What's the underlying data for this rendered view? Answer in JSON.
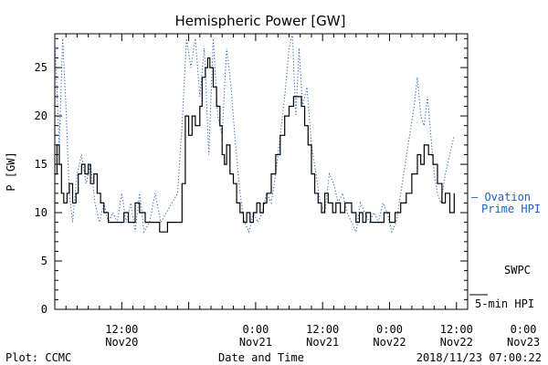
{
  "chart_data": {
    "type": "line",
    "title": "Hemispheric Power [GW]",
    "xlabel": "Date and Time",
    "ylabel": "P [GW]",
    "ylim": [
      0,
      28.5
    ],
    "yticks": [
      0,
      5,
      10,
      15,
      20,
      25
    ],
    "xlim_hours": [
      -6,
      31
    ],
    "xticks": [
      {
        "hour": 0,
        "line1": "12:00",
        "line2": "Nov20"
      },
      {
        "hour": 12,
        "line1": "0:00",
        "line2": "Nov21"
      },
      {
        "hour": 18,
        "line1": "12:00",
        "line2": "Nov21"
      },
      {
        "hour": 24,
        "line1": "0:00",
        "line2": "Nov22"
      },
      {
        "hour": 30,
        "line1": "12:00",
        "line2": "Nov22"
      },
      {
        "hour": 36,
        "line1": "0:00",
        "line2": "Nov23"
      }
    ],
    "series": [
      {
        "name": "SWPC 5-min HPI",
        "color": "#000000",
        "style": "step",
        "points": [
          [
            -6.0,
            14
          ],
          [
            -5.8,
            17
          ],
          [
            -5.6,
            15
          ],
          [
            -5.4,
            12
          ],
          [
            -5.2,
            11
          ],
          [
            -4.9,
            12
          ],
          [
            -4.7,
            13
          ],
          [
            -4.4,
            11
          ],
          [
            -4.1,
            12
          ],
          [
            -3.9,
            14
          ],
          [
            -3.6,
            15
          ],
          [
            -3.3,
            14
          ],
          [
            -3.0,
            15
          ],
          [
            -2.8,
            13
          ],
          [
            -2.5,
            14
          ],
          [
            -2.2,
            12
          ],
          [
            -1.9,
            11
          ],
          [
            -1.6,
            10
          ],
          [
            -1.2,
            9
          ],
          [
            -0.5,
            9
          ],
          [
            0.2,
            10
          ],
          [
            0.6,
            9
          ],
          [
            1.2,
            11
          ],
          [
            1.6,
            10
          ],
          [
            2.1,
            9
          ],
          [
            2.9,
            9
          ],
          [
            3.4,
            8
          ],
          [
            4.1,
            9
          ],
          [
            5.0,
            9
          ],
          [
            5.4,
            13
          ],
          [
            5.7,
            20
          ],
          [
            6.0,
            18
          ],
          [
            6.3,
            20
          ],
          [
            6.6,
            19
          ],
          [
            7.0,
            21
          ],
          [
            7.2,
            24
          ],
          [
            7.5,
            25
          ],
          [
            7.7,
            26
          ],
          [
            7.9,
            25
          ],
          [
            8.2,
            23
          ],
          [
            8.5,
            21
          ],
          [
            8.8,
            19
          ],
          [
            9.0,
            16
          ],
          [
            9.2,
            15
          ],
          [
            9.4,
            17
          ],
          [
            9.7,
            14
          ],
          [
            10.0,
            13
          ],
          [
            10.3,
            11
          ],
          [
            10.6,
            10
          ],
          [
            10.9,
            9
          ],
          [
            11.2,
            10
          ],
          [
            11.5,
            9
          ],
          [
            11.8,
            10
          ],
          [
            12.1,
            11
          ],
          [
            12.4,
            10
          ],
          [
            12.7,
            11
          ],
          [
            13.0,
            12
          ],
          [
            13.4,
            14
          ],
          [
            13.8,
            16
          ],
          [
            14.2,
            18
          ],
          [
            14.6,
            20
          ],
          [
            15.0,
            21
          ],
          [
            15.4,
            22
          ],
          [
            15.8,
            22
          ],
          [
            16.1,
            21
          ],
          [
            16.4,
            19
          ],
          [
            16.7,
            17
          ],
          [
            17.0,
            14
          ],
          [
            17.3,
            12
          ],
          [
            17.6,
            11
          ],
          [
            17.9,
            10
          ],
          [
            18.2,
            12
          ],
          [
            18.5,
            11
          ],
          [
            18.9,
            10
          ],
          [
            19.2,
            11
          ],
          [
            19.6,
            10
          ],
          [
            20.0,
            11
          ],
          [
            20.6,
            10
          ],
          [
            21.0,
            9
          ],
          [
            21.3,
            10
          ],
          [
            21.6,
            9
          ],
          [
            21.9,
            10
          ],
          [
            22.3,
            9
          ],
          [
            23.2,
            9
          ],
          [
            23.5,
            10
          ],
          [
            24.0,
            9
          ],
          [
            24.5,
            10
          ],
          [
            25.0,
            11
          ],
          [
            25.5,
            12
          ],
          [
            26.0,
            14
          ],
          [
            26.5,
            16
          ],
          [
            26.8,
            15
          ],
          [
            27.1,
            17
          ],
          [
            27.5,
            16
          ],
          [
            27.9,
            15
          ],
          [
            28.3,
            13
          ],
          [
            28.7,
            11
          ],
          [
            29.0,
            12
          ],
          [
            29.4,
            10
          ],
          [
            29.8,
            12
          ]
        ]
      },
      {
        "name": "Ovation Prime HPI",
        "color": "#1f5fbf",
        "style": "dotted",
        "points": [
          [
            -6.0,
            28
          ],
          [
            -5.6,
            17
          ],
          [
            -5.3,
            28
          ],
          [
            -5.0,
            21
          ],
          [
            -4.7,
            12
          ],
          [
            -4.4,
            9
          ],
          [
            -4.0,
            14
          ],
          [
            -3.6,
            16
          ],
          [
            -3.2,
            13
          ],
          [
            -2.8,
            15
          ],
          [
            -2.4,
            11
          ],
          [
            -2.0,
            9
          ],
          [
            -1.6,
            11
          ],
          [
            -1.2,
            9
          ],
          [
            -0.8,
            10
          ],
          [
            -0.4,
            9
          ],
          [
            0.0,
            12
          ],
          [
            0.4,
            9
          ],
          [
            0.8,
            11
          ],
          [
            1.2,
            8
          ],
          [
            1.6,
            12
          ],
          [
            2.0,
            8
          ],
          [
            2.5,
            9
          ],
          [
            3.0,
            12
          ],
          [
            3.5,
            9
          ],
          [
            4.0,
            10
          ],
          [
            4.5,
            11
          ],
          [
            5.0,
            12
          ],
          [
            5.4,
            19
          ],
          [
            5.8,
            28
          ],
          [
            6.2,
            25
          ],
          [
            6.6,
            28
          ],
          [
            7.0,
            22
          ],
          [
            7.4,
            27
          ],
          [
            7.8,
            16
          ],
          [
            8.2,
            28
          ],
          [
            8.6,
            20
          ],
          [
            9.0,
            18
          ],
          [
            9.4,
            27
          ],
          [
            9.8,
            23
          ],
          [
            10.2,
            17
          ],
          [
            10.6,
            12
          ],
          [
            11.0,
            9
          ],
          [
            11.4,
            8
          ],
          [
            11.8,
            10
          ],
          [
            12.2,
            9
          ],
          [
            12.6,
            10
          ],
          [
            13.0,
            12
          ],
          [
            13.4,
            11
          ],
          [
            13.8,
            14
          ],
          [
            14.2,
            18
          ],
          [
            14.6,
            22
          ],
          [
            15.0,
            27
          ],
          [
            15.3,
            29
          ],
          [
            15.6,
            20
          ],
          [
            15.9,
            27
          ],
          [
            16.2,
            21
          ],
          [
            16.6,
            23
          ],
          [
            17.0,
            17
          ],
          [
            17.4,
            14
          ],
          [
            17.8,
            11
          ],
          [
            18.2,
            10
          ],
          [
            18.6,
            14
          ],
          [
            19.0,
            13
          ],
          [
            19.4,
            11
          ],
          [
            19.8,
            12
          ],
          [
            20.2,
            10
          ],
          [
            20.6,
            9
          ],
          [
            21.0,
            8
          ],
          [
            21.4,
            11
          ],
          [
            21.8,
            10
          ],
          [
            22.2,
            9
          ],
          [
            22.6,
            10
          ],
          [
            23.0,
            9
          ],
          [
            23.4,
            11
          ],
          [
            23.8,
            10
          ],
          [
            24.2,
            8
          ],
          [
            24.6,
            9
          ],
          [
            25.0,
            12
          ],
          [
            25.4,
            15
          ],
          [
            25.8,
            18
          ],
          [
            26.2,
            21
          ],
          [
            26.5,
            24
          ],
          [
            26.8,
            20
          ],
          [
            27.1,
            19
          ],
          [
            27.4,
            22
          ],
          [
            27.7,
            18
          ],
          [
            28.0,
            14
          ],
          [
            28.3,
            12
          ],
          [
            28.6,
            11
          ],
          [
            29.0,
            14
          ],
          [
            29.4,
            16
          ],
          [
            29.8,
            18
          ]
        ]
      }
    ],
    "legend": [
      {
        "label_line1": "— Ovation",
        "label_line2": "Prime HPI",
        "color": "#1f5fbf",
        "position": "right-middle"
      },
      {
        "label_line1": "SWPC",
        "label_line2": "5-min HPI",
        "color": "#000000",
        "position": "right-bottom"
      }
    ]
  },
  "footer": {
    "left": "Plot: CCMC",
    "center": "Date and Time",
    "right": "2018/11/23 07:00:22"
  }
}
